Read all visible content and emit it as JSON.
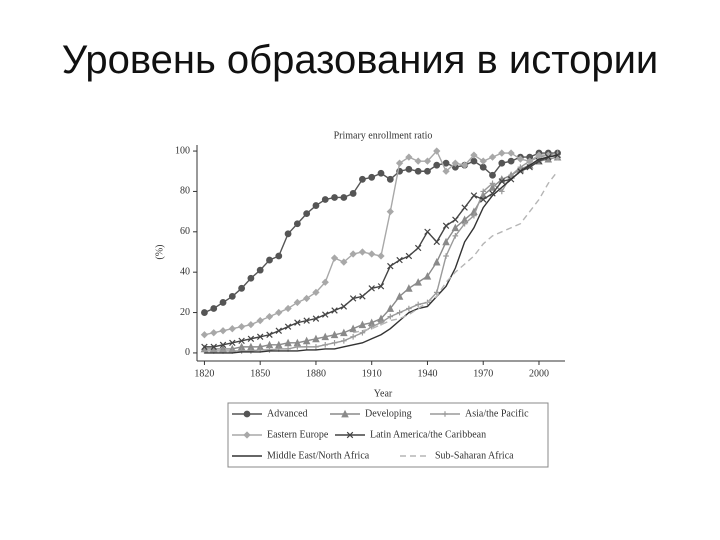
{
  "title": "Уровень образования в истории",
  "chart_data": {
    "type": "line",
    "title": "Primary enrollment ratio",
    "xlabel": "Year",
    "ylabel": "(%)",
    "x": [
      1820,
      1825,
      1830,
      1835,
      1840,
      1845,
      1850,
      1855,
      1860,
      1865,
      1870,
      1875,
      1880,
      1885,
      1890,
      1895,
      1900,
      1905,
      1910,
      1915,
      1920,
      1925,
      1930,
      1935,
      1940,
      1945,
      1950,
      1955,
      1960,
      1965,
      1970,
      1975,
      1980,
      1985,
      1990,
      1995,
      2000,
      2005,
      2010
    ],
    "xlim": [
      1816,
      2014
    ],
    "xticks": [
      1820,
      1850,
      1880,
      1910,
      1940,
      1970,
      2000
    ],
    "ylim": [
      -4,
      103
    ],
    "yticks": [
      0,
      20,
      40,
      60,
      80,
      100
    ],
    "series": [
      {
        "name": "Advanced",
        "color": "#555555",
        "marker": "circle",
        "values": [
          20,
          22,
          25,
          28,
          32,
          37,
          41,
          46,
          48,
          59,
          64,
          69,
          73,
          76,
          77,
          77,
          79,
          86,
          87,
          89,
          86,
          90,
          91,
          90,
          90,
          93,
          94,
          92,
          93,
          95,
          92,
          88,
          94,
          95,
          97,
          97,
          99,
          99,
          99
        ]
      },
      {
        "name": "Developing",
        "color": "#8a8a8a",
        "marker": "triangle",
        "values": [
          2,
          2,
          2,
          2,
          3,
          3,
          3,
          4,
          4,
          5,
          5,
          6,
          7,
          8,
          9,
          10,
          12,
          14,
          15,
          17,
          22,
          28,
          32,
          35,
          38,
          45,
          55,
          62,
          66,
          70,
          78,
          82,
          86,
          88,
          91,
          93,
          95,
          96,
          97
        ]
      },
      {
        "name": "Asia/the Pacific",
        "color": "#9a9a9a",
        "marker": "plus",
        "values": [
          1,
          1,
          1,
          1,
          1,
          1,
          1.5,
          1.5,
          2,
          2,
          3,
          3,
          3,
          4,
          5,
          6,
          8,
          10,
          13,
          15,
          18,
          20,
          22,
          24,
          25,
          30,
          48,
          58,
          64,
          68,
          80,
          84,
          80,
          88,
          92,
          95,
          97,
          98,
          99
        ]
      },
      {
        "name": "Eastern Europe",
        "color": "#a8a8a8",
        "marker": "diamond",
        "values": [
          9,
          10,
          11,
          12,
          13,
          14,
          16,
          18,
          20,
          22,
          25,
          27,
          30,
          35,
          47,
          45,
          49,
          50,
          49,
          48,
          70,
          94,
          97,
          95,
          95,
          100,
          90,
          94,
          93,
          98,
          95,
          97,
          99,
          99,
          96,
          95,
          98,
          98,
          97
        ]
      },
      {
        "name": "Latin America/the Caribbean",
        "color": "#444444",
        "marker": "x",
        "values": [
          3,
          3,
          4,
          5,
          6,
          7,
          8,
          9,
          11,
          13,
          15,
          16,
          17,
          19,
          21,
          23,
          27,
          28,
          32,
          33,
          43,
          46,
          48,
          52,
          60,
          55,
          63,
          66,
          72,
          78,
          76,
          79,
          85,
          86,
          90,
          92,
          95,
          97,
          98
        ]
      },
      {
        "name": "Middle East/North Africa",
        "color": "#333333",
        "marker": "none",
        "values": [
          0,
          0,
          0,
          0,
          0.5,
          0.5,
          0.5,
          1,
          1,
          1,
          1,
          1.5,
          1.5,
          2,
          2,
          3,
          4,
          5,
          7,
          9,
          12,
          16,
          20,
          22,
          23,
          28,
          33,
          42,
          55,
          62,
          72,
          78,
          82,
          86,
          90,
          93,
          96,
          97,
          98
        ]
      },
      {
        "name": "Sub-Saharan Africa",
        "color": "#b5b5b5",
        "marker": "none",
        "dash": true,
        "values": [
          null,
          null,
          null,
          null,
          null,
          null,
          null,
          null,
          null,
          null,
          null,
          null,
          null,
          null,
          null,
          null,
          10,
          11,
          12,
          14,
          16,
          17,
          19,
          22,
          25,
          28,
          35,
          40,
          44,
          48,
          54,
          58,
          60,
          62,
          64,
          70,
          76,
          84,
          90
        ]
      }
    ]
  }
}
